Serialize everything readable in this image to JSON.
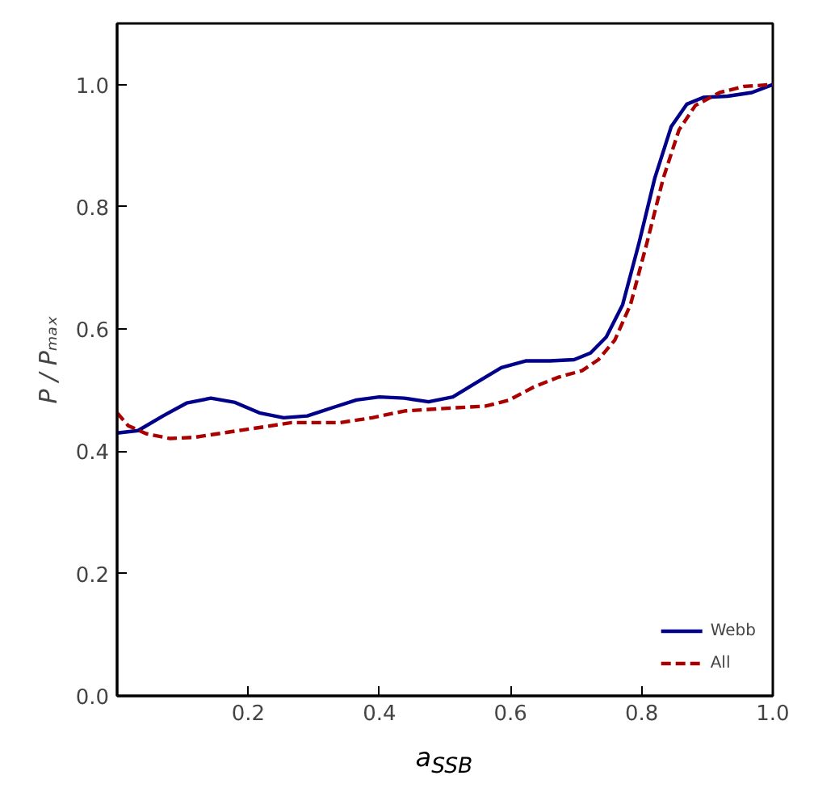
{
  "chart_data": {
    "type": "line",
    "xlabel": "a$_{SSB}$",
    "ylabel": "P / Pₘₐₓ",
    "xlim": [
      0,
      1
    ],
    "ylim": [
      0,
      1.1
    ],
    "xticks": [
      0.2,
      0.4,
      0.6,
      0.8,
      {
        "value": 1,
        "label": "1.0"
      }
    ],
    "yticks": [
      {
        "value": 0,
        "label": "0.0"
      },
      0.2,
      0.4,
      0.6,
      0.8,
      {
        "value": 1,
        "label": "1.0"
      }
    ],
    "grid": false,
    "legend": "bottom right",
    "series": [
      {
        "name": "Webb",
        "color": "#00008b",
        "line_style": "solid",
        "x": [
          0.0,
          0.032,
          0.07,
          0.106,
          0.143,
          0.18,
          0.217,
          0.254,
          0.29,
          0.327,
          0.365,
          0.4,
          0.438,
          0.475,
          0.512,
          0.549,
          0.586,
          0.623,
          0.66,
          0.697,
          0.722,
          0.746,
          0.771,
          0.796,
          0.82,
          0.845,
          0.869,
          0.894,
          0.931,
          0.968,
          1.0
        ],
        "values": [
          0.43,
          0.434,
          0.458,
          0.479,
          0.487,
          0.48,
          0.463,
          0.455,
          0.458,
          0.471,
          0.484,
          0.489,
          0.487,
          0.481,
          0.489,
          0.513,
          0.537,
          0.548,
          0.548,
          0.55,
          0.561,
          0.587,
          0.64,
          0.741,
          0.847,
          0.931,
          0.968,
          0.979,
          0.981,
          0.987,
          1.0
        ]
      },
      {
        "name": "All",
        "color": "#aa0000",
        "line_style": "dashed",
        "x": [
          0.0,
          0.017,
          0.044,
          0.081,
          0.118,
          0.167,
          0.217,
          0.266,
          0.34,
          0.389,
          0.438,
          0.512,
          0.562,
          0.598,
          0.635,
          0.672,
          0.709,
          0.734,
          0.759,
          0.783,
          0.808,
          0.833,
          0.857,
          0.882,
          0.919,
          0.956,
          1.0
        ],
        "values": [
          0.463,
          0.442,
          0.429,
          0.421,
          0.423,
          0.431,
          0.439,
          0.447,
          0.447,
          0.455,
          0.466,
          0.471,
          0.474,
          0.484,
          0.505,
          0.521,
          0.532,
          0.55,
          0.582,
          0.64,
          0.741,
          0.847,
          0.926,
          0.966,
          0.987,
          0.997,
          1.0
        ]
      }
    ]
  }
}
